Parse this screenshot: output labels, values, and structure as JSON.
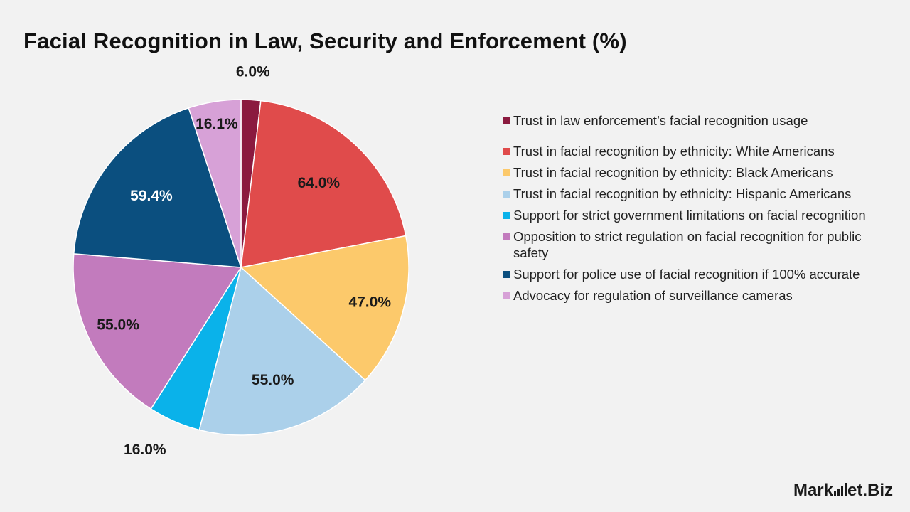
{
  "title": "Facial Recognition in Law, Security and Enforcement (%)",
  "chart_data": {
    "type": "pie",
    "title": "Facial Recognition in Law, Security and Enforcement (%)",
    "legend_position": "right",
    "slices": [
      {
        "label": "Trust in law enforcement’s facial recognition usage",
        "value": 6.0,
        "display": "6.0%",
        "color": "#8b1a3f"
      },
      {
        "label": "Trust in facial recognition by ethnicity: White Americans",
        "value": 64.0,
        "display": "64.0%",
        "color": "#e04b4b"
      },
      {
        "label": "Trust in facial recognition by ethnicity: Black Americans",
        "value": 47.0,
        "display": "47.0%",
        "color": "#fcc96b"
      },
      {
        "label": "Trust in facial recognition by ethnicity: Hispanic Americans",
        "value": 55.0,
        "display": "55.0%",
        "color": "#abd0ea"
      },
      {
        "label": "Support for strict government limitations on facial recognition",
        "value": 16.0,
        "display": "16.0%",
        "color": "#0ab2ea"
      },
      {
        "label": "Opposition to strict regulation on facial recognition for public safety",
        "value": 55.0,
        "display": "55.0%",
        "color": "#c27bbd"
      },
      {
        "label": "Support for police use of facial recognition if 100% accurate",
        "value": 59.4,
        "display": "59.4%",
        "color": "#0b4f7f"
      },
      {
        "label": "Advocacy for regulation of surveillance cameras",
        "value": 16.1,
        "display": "16.1%",
        "color": "#d7a1d7"
      }
    ]
  },
  "brand": {
    "left": "Mark",
    "middle": "et",
    "right": ".Biz"
  }
}
